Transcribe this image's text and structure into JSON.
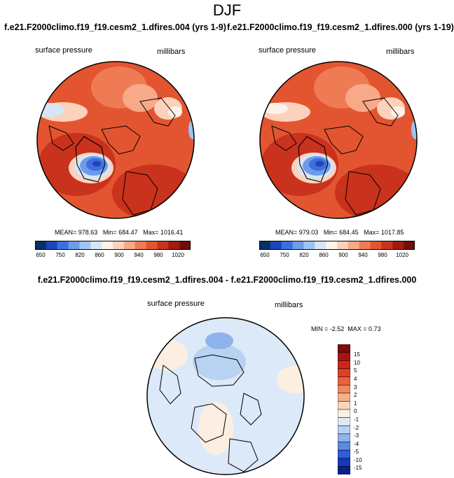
{
  "title": "DJF",
  "panels": [
    {
      "case": "f.e21.F2000climo.f19_f19.cesm2_1.dfires.004 (yrs 1-9)",
      "variable": "surface pressure",
      "units": "millibars",
      "mean": "MEAN= 978.63",
      "min": "Min= 684.47",
      "max": "Max= 1016.41"
    },
    {
      "case": "f.e21.F2000climo.f19_f19.cesm2_1.dfires.000 (yrs 1-19)",
      "variable": "surface pressure",
      "units": "millibars",
      "mean": "MEAN= 979.03",
      "min": "Min= 684.45",
      "max": "Max= 1017.85"
    }
  ],
  "colorbar": {
    "colors": [
      "#08306b",
      "#1f45b4",
      "#3d6fe0",
      "#6f9be9",
      "#9ec4f1",
      "#d5e6f7",
      "#fff2e8",
      "#fcd2bc",
      "#f7a988",
      "#ef7b55",
      "#e35530",
      "#c9321c",
      "#a11c10",
      "#730d07"
    ],
    "tick_labels": [
      "650",
      "750",
      "820",
      "860",
      "900",
      "940",
      "980",
      "1020"
    ]
  },
  "diff": {
    "title": "f.e21.F2000climo.f19_f19.cesm2_1.dfires.004 - f.e21.F2000climo.f19_f19.cesm2_1.dfires.000",
    "variable": "surface pressure",
    "units": "millibars",
    "min": "MIN =  -2.52",
    "max": "MAX =   0.73",
    "levels": [
      "15",
      "10",
      "5",
      "4",
      "3",
      "2",
      "1",
      "0",
      "-1",
      "-2",
      "-3",
      "-4",
      "-5",
      "-10",
      "-15"
    ],
    "colors": [
      "#7a0d0d",
      "#a8150f",
      "#c9271a",
      "#dc4124",
      "#e8633c",
      "#f0895e",
      "#f5b08a",
      "#f9d8c0",
      "#fcefe2",
      "#dce9f8",
      "#b8d2f1",
      "#8db3ea",
      "#5b8ae3",
      "#2f5ed9",
      "#1738b8",
      "#0a1f8a"
    ]
  },
  "chart_data": {
    "type": "heatmap",
    "title": "DJF",
    "variable": "surface pressure",
    "units": "millibars",
    "projection": "polar stereographic (north)",
    "panels": [
      {
        "case": "f.e21.F2000climo.f19_f19.cesm2_1.dfires.004 (yrs 1-9)",
        "mean": 978.63,
        "min": 684.47,
        "max": 1016.41
      },
      {
        "case": "f.e21.F2000climo.f19_f19.cesm2_1.dfires.000 (yrs 1-19)",
        "mean": 979.03,
        "min": 684.45,
        "max": 1017.85
      },
      {
        "case": "f.e21.F2000climo.f19_f19.cesm2_1.dfires.004 - f.e21.F2000climo.f19_f19.cesm2_1.dfires.000",
        "min": -2.52,
        "max": 0.73
      }
    ],
    "colorbar_ticks": [
      650,
      750,
      820,
      860,
      900,
      940,
      980,
      1020
    ],
    "diff_levels": [
      -15,
      -10,
      -5,
      -4,
      -3,
      -2,
      -1,
      0,
      1,
      2,
      3,
      4,
      5,
      10,
      15
    ]
  }
}
